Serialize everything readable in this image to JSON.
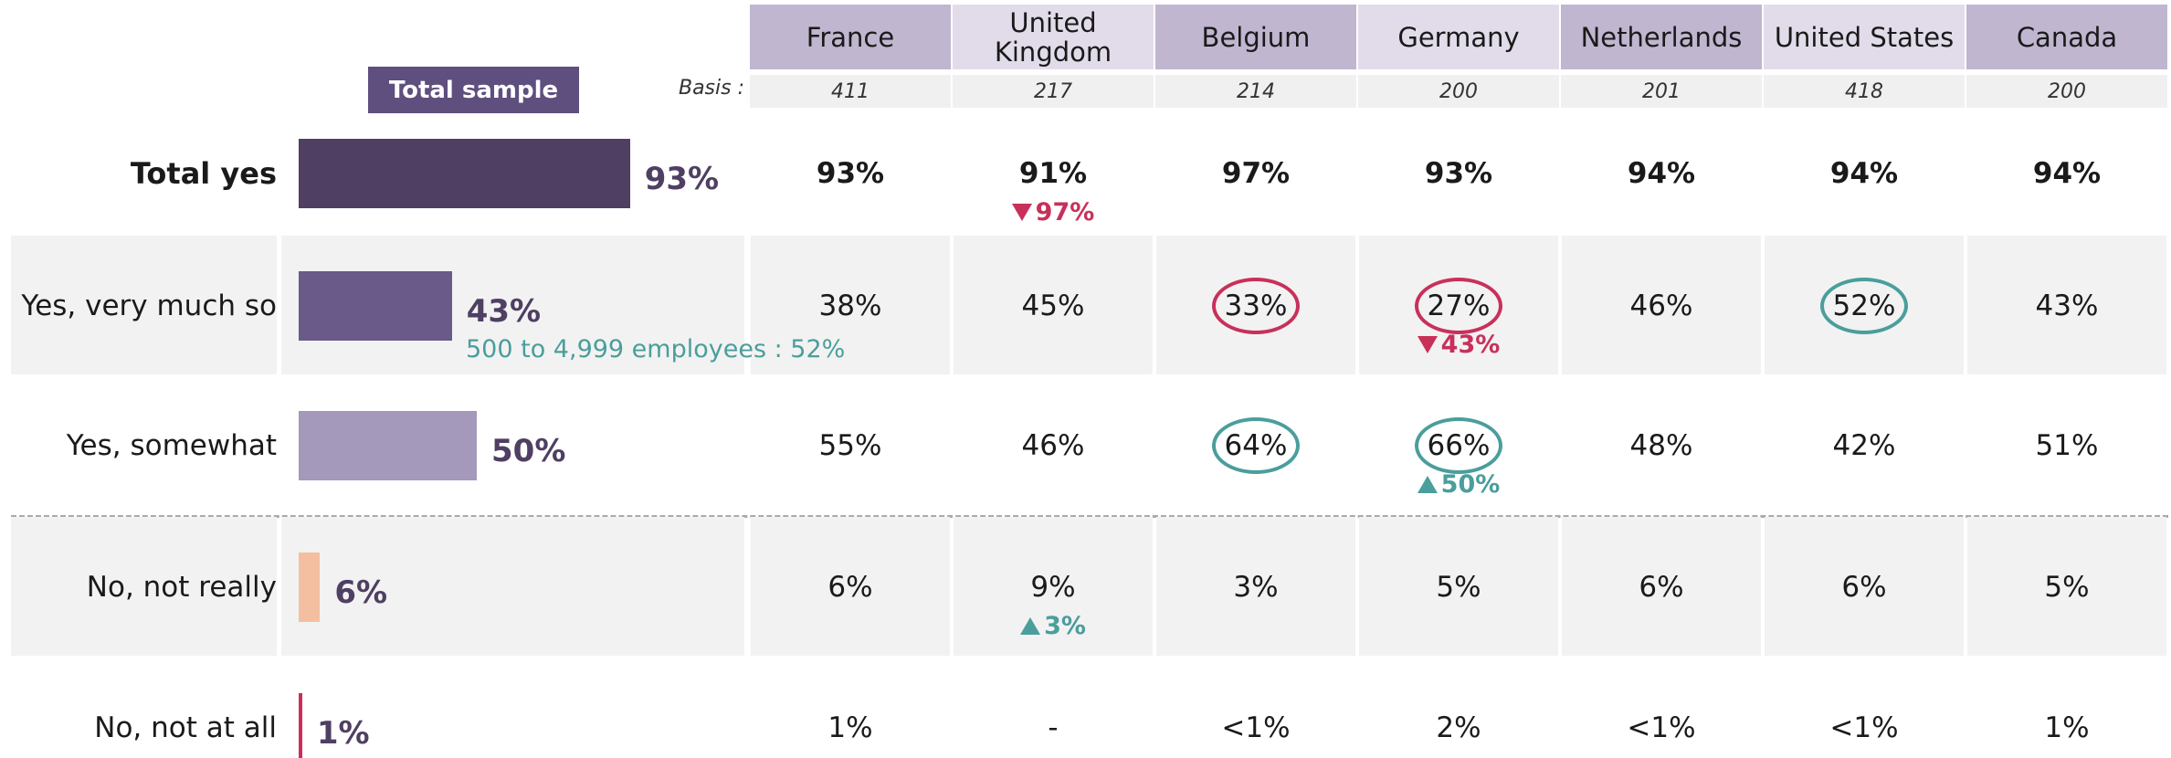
{
  "header": {
    "total_label": "Total sample",
    "basis_label": "Basis :"
  },
  "columns": [
    {
      "name": "France",
      "basis": 411,
      "color": "#c0b6d0"
    },
    {
      "name": "United Kingdom",
      "basis": 217,
      "color": "#e2dcea"
    },
    {
      "name": "Belgium",
      "basis": 214,
      "color": "#c0b6d0"
    },
    {
      "name": "Germany",
      "basis": 200,
      "color": "#e2dcea"
    },
    {
      "name": "Netherlands",
      "basis": 201,
      "color": "#c0b6d0"
    },
    {
      "name": "United States",
      "basis": 418,
      "color": "#e2dcea"
    },
    {
      "name": "Canada",
      "basis": 200,
      "color": "#c0b6d0"
    }
  ],
  "rows": [
    {
      "label": "Total yes",
      "total": 93,
      "total_label": "93%",
      "bar_color": "#4f3f63",
      "bold": true,
      "cells": [
        {
          "text": "93%"
        },
        {
          "text": "91%",
          "note": {
            "text": "97%",
            "dir": "down",
            "color": "#c8305a"
          }
        },
        {
          "text": "97%"
        },
        {
          "text": "93%"
        },
        {
          "text": "94%"
        },
        {
          "text": "94%"
        },
        {
          "text": "94%"
        }
      ]
    },
    {
      "label": "Yes, very much so",
      "total": 43,
      "total_label": "43%",
      "bar_color": "#6a5a8a",
      "shaded": true,
      "subnote": {
        "text": "500 to 4,999 employees : 52%",
        "color": "#4a9e9c"
      },
      "cells": [
        {
          "text": "38%"
        },
        {
          "text": "45%"
        },
        {
          "text": "33%",
          "circle": "#c8305a"
        },
        {
          "text": "27%",
          "circle": "#c8305a",
          "note": {
            "text": "43%",
            "dir": "down",
            "color": "#c8305a"
          }
        },
        {
          "text": "46%"
        },
        {
          "text": "52%",
          "circle": "#4a9e9c"
        },
        {
          "text": "43%"
        }
      ]
    },
    {
      "label": "Yes, somewhat",
      "total": 50,
      "total_label": "50%",
      "bar_color": "#a498bb",
      "separator_after": true,
      "cells": [
        {
          "text": "55%"
        },
        {
          "text": "46%"
        },
        {
          "text": "64%",
          "circle": "#4a9e9c"
        },
        {
          "text": "66%",
          "circle": "#4a9e9c",
          "note": {
            "text": "50%",
            "dir": "up",
            "color": "#4a9e9c"
          }
        },
        {
          "text": "48%"
        },
        {
          "text": "42%"
        },
        {
          "text": "51%"
        }
      ]
    },
    {
      "label": "No, not really",
      "total": 6,
      "total_label": "6%",
      "bar_color": "#f4bfa0",
      "shaded": true,
      "cells": [
        {
          "text": "6%"
        },
        {
          "text": "9%",
          "note": {
            "text": "3%",
            "dir": "up",
            "color": "#4a9e9c"
          }
        },
        {
          "text": "3%"
        },
        {
          "text": "5%"
        },
        {
          "text": "6%"
        },
        {
          "text": "6%"
        },
        {
          "text": "5%"
        }
      ]
    },
    {
      "label": "No, not at all",
      "total": 1,
      "total_label": "1%",
      "bar_color": "#c8305a",
      "cells": [
        {
          "text": "1%"
        },
        {
          "text": "-"
        },
        {
          "text": "<1%"
        },
        {
          "text": "2%"
        },
        {
          "text": "<1%"
        },
        {
          "text": "<1%"
        },
        {
          "text": "1%"
        }
      ]
    }
  ]
}
